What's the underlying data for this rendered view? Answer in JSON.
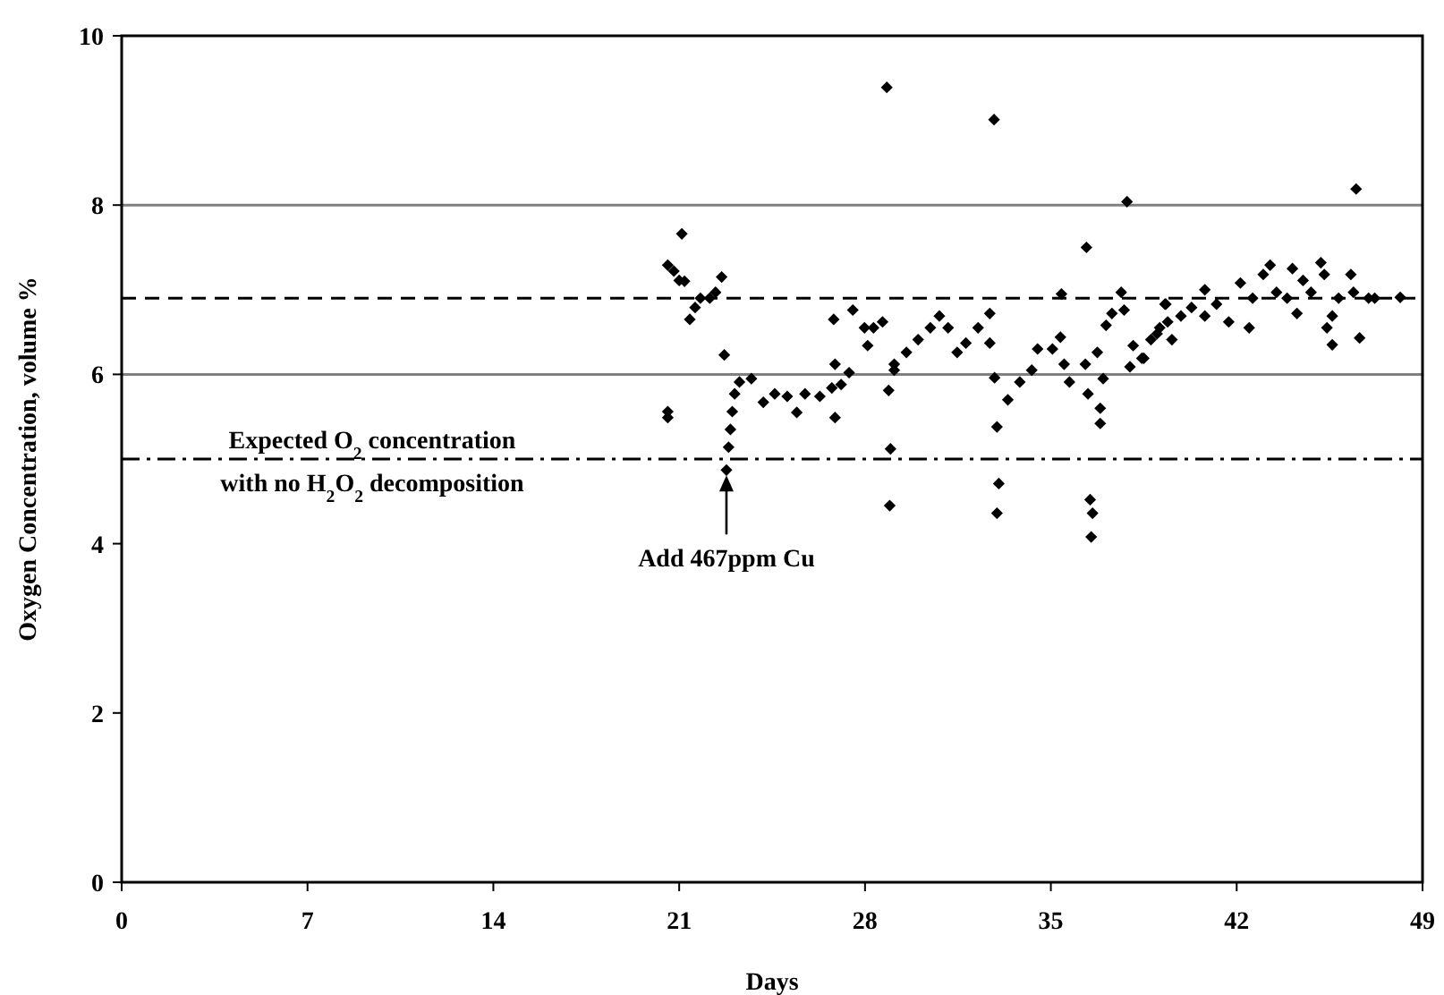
{
  "chart_data": {
    "type": "scatter",
    "xlabel": "Days",
    "ylabel": "Oxygen Concentration, volume %",
    "xlim": [
      0,
      49
    ],
    "ylim": [
      0,
      10
    ],
    "xticks": [
      0,
      7,
      14,
      21,
      28,
      35,
      42,
      49
    ],
    "yticks": [
      0,
      2,
      4,
      6,
      8,
      10
    ],
    "marker": "diamond",
    "grid": false,
    "series": [
      {
        "color": "#000000",
        "x": [
          20.57,
          20.57,
          20.57,
          20.8,
          21.0,
          21.1,
          21.2,
          21.4,
          21.6,
          21.8,
          22.15,
          22.37,
          22.6,
          22.7,
          22.78,
          22.86,
          22.93,
          23.0,
          23.09,
          23.27,
          23.72,
          24.17,
          24.6,
          25.07,
          25.43,
          25.74,
          26.3,
          26.75,
          26.82,
          26.87,
          26.87,
          27.1,
          27.4,
          27.54,
          27.98,
          28.1,
          28.32,
          28.66,
          28.82,
          28.89,
          28.93,
          28.96,
          29.1,
          29.1,
          29.56,
          30.0,
          30.46,
          30.8,
          31.13,
          31.47,
          31.8,
          32.26,
          32.7,
          32.7,
          32.86,
          32.88,
          32.97,
          32.97,
          33.04,
          33.38,
          33.83,
          34.28,
          34.5,
          35.06,
          35.36,
          35.4,
          35.5,
          35.7,
          36.3,
          36.34,
          36.4,
          36.48,
          36.52,
          36.57,
          36.75,
          36.86,
          36.86,
          36.97,
          37.08,
          37.3,
          37.65,
          37.76,
          37.87,
          37.98,
          38.1,
          38.43,
          38.5,
          38.77,
          39.0,
          39.1,
          39.3,
          39.33,
          39.4,
          39.56,
          39.9,
          40.3,
          40.8,
          40.8,
          41.24,
          41.7,
          42.14,
          42.47,
          42.6,
          43.0,
          43.26,
          43.5,
          43.9,
          44.1,
          44.27,
          44.5,
          44.8,
          45.17,
          45.3,
          45.4,
          45.6,
          45.6,
          45.84,
          46.3,
          46.4,
          46.5,
          46.63,
          46.97,
          47.2,
          48.16
        ],
        "values": [
          7.29,
          5.56,
          5.49,
          7.22,
          7.11,
          7.66,
          7.1,
          6.65,
          6.79,
          6.9,
          6.9,
          6.97,
          7.15,
          6.23,
          4.87,
          5.14,
          5.35,
          5.56,
          5.77,
          5.91,
          5.95,
          5.67,
          5.77,
          5.74,
          5.55,
          5.77,
          5.74,
          5.84,
          6.65,
          6.12,
          5.49,
          5.88,
          6.02,
          6.76,
          6.55,
          6.34,
          6.55,
          6.62,
          9.39,
          5.81,
          4.45,
          5.12,
          6.12,
          6.05,
          6.26,
          6.41,
          6.55,
          6.69,
          6.55,
          6.26,
          6.37,
          6.55,
          6.37,
          6.72,
          9.01,
          5.96,
          5.38,
          4.36,
          4.71,
          5.7,
          5.91,
          6.05,
          6.3,
          6.3,
          6.44,
          6.95,
          6.12,
          5.91,
          6.12,
          7.5,
          5.77,
          4.52,
          4.08,
          4.36,
          6.26,
          5.6,
          5.42,
          5.95,
          6.58,
          6.72,
          6.97,
          6.76,
          8.04,
          6.09,
          6.34,
          6.19,
          6.19,
          6.41,
          6.48,
          6.55,
          6.83,
          6.83,
          6.62,
          6.41,
          6.69,
          6.79,
          7.0,
          6.69,
          6.83,
          6.62,
          7.08,
          6.55,
          6.9,
          7.18,
          7.29,
          6.97,
          6.9,
          7.25,
          6.72,
          7.11,
          6.97,
          7.32,
          7.18,
          6.55,
          6.69,
          6.35,
          6.9,
          7.18,
          6.97,
          8.19,
          6.43,
          6.9,
          6.9,
          6.91
        ]
      }
    ],
    "ref_lines": [
      {
        "axis": "y",
        "value": 8,
        "color": "#808080",
        "line_style": "solid"
      },
      {
        "axis": "y",
        "value": 6,
        "color": "#808080",
        "line_style": "solid"
      },
      {
        "axis": "y",
        "value": 6.9,
        "color": "#000000",
        "line_style": "dashed"
      },
      {
        "axis": "y",
        "value": 5,
        "color": "#000000",
        "line_style": "dashdot",
        "label": "Expected O$_{2}$ concentration\nwith no H$_{2}$O$_{2}$ decomposition"
      }
    ],
    "annotations": [
      {
        "text": "Add 467ppm Cu",
        "x": 22.78,
        "y": 4.87
      }
    ]
  }
}
